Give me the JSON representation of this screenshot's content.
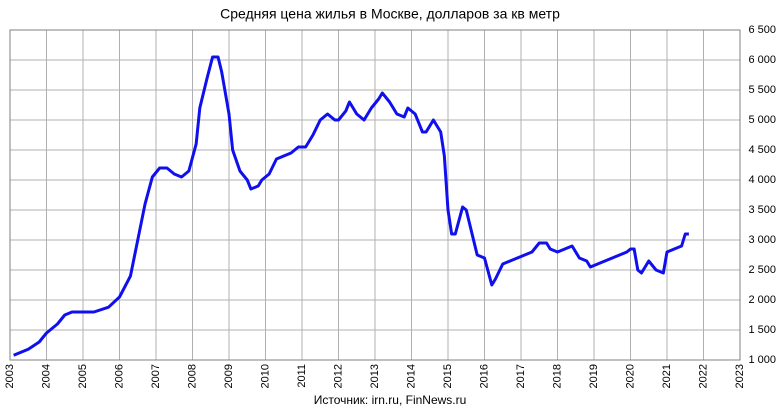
{
  "chart_data": {
    "type": "line",
    "title": "Средняя цена жилья в Москве, долларов за кв метр",
    "source": "Источник: irn.ru, FinNews.ru",
    "grid": true,
    "xlim": [
      2003,
      2023
    ],
    "xticks": [
      2003,
      2004,
      2005,
      2006,
      2007,
      2008,
      2009,
      2010,
      2011,
      2012,
      2013,
      2014,
      2015,
      2016,
      2017,
      2018,
      2019,
      2020,
      2021,
      2022,
      2023
    ],
    "ylim": [
      1000,
      6500
    ],
    "yticks": [
      {
        "value": 1000,
        "label": "1 000"
      },
      {
        "value": 1500,
        "label": "1 500"
      },
      {
        "value": 2000,
        "label": "2 000"
      },
      {
        "value": 2500,
        "label": "2 500"
      },
      {
        "value": 3000,
        "label": "3 000"
      },
      {
        "value": 3500,
        "label": "3 500"
      },
      {
        "value": 4000,
        "label": "4 000"
      },
      {
        "value": 4500,
        "label": "4 500"
      },
      {
        "value": 5000,
        "label": "5 000"
      },
      {
        "value": 5500,
        "label": "5 500"
      },
      {
        "value": 6000,
        "label": "6 000"
      },
      {
        "value": 6500,
        "label": "6 500"
      }
    ],
    "x": [
      2003.1,
      2003.5,
      2003.8,
      2004.0,
      2004.3,
      2004.5,
      2004.7,
      2005.0,
      2005.3,
      2005.7,
      2006.0,
      2006.3,
      2006.5,
      2006.7,
      2006.9,
      2007.1,
      2007.3,
      2007.5,
      2007.7,
      2007.9,
      2008.1,
      2008.2,
      2008.4,
      2008.55,
      2008.7,
      2008.8,
      2009.0,
      2009.1,
      2009.3,
      2009.5,
      2009.6,
      2009.8,
      2009.9,
      2010.1,
      2010.3,
      2010.5,
      2010.7,
      2010.9,
      2011.1,
      2011.3,
      2011.5,
      2011.7,
      2011.9,
      2012.0,
      2012.2,
      2012.3,
      2012.5,
      2012.7,
      2012.9,
      2013.1,
      2013.2,
      2013.4,
      2013.6,
      2013.8,
      2013.9,
      2014.1,
      2014.3,
      2014.4,
      2014.6,
      2014.8,
      2014.9,
      2015.0,
      2015.1,
      2015.2,
      2015.4,
      2015.5,
      2015.7,
      2015.8,
      2016.0,
      2016.2,
      2016.3,
      2016.5,
      2016.7,
      2016.9,
      2017.1,
      2017.3,
      2017.5,
      2017.7,
      2017.8,
      2018.0,
      2018.2,
      2018.4,
      2018.6,
      2018.8,
      2018.9,
      2019.1,
      2019.3,
      2019.5,
      2019.7,
      2019.9,
      2020.0,
      2020.1,
      2020.2,
      2020.3,
      2020.5,
      2020.7,
      2020.9,
      2021.0,
      2021.2,
      2021.4,
      2021.5,
      2021.6
    ],
    "series": [
      {
        "color": "#1010ee",
        "values": [
          1080,
          1180,
          1300,
          1450,
          1600,
          1750,
          1800,
          1800,
          1800,
          1880,
          2050,
          2400,
          3000,
          3600,
          4050,
          4200,
          4200,
          4100,
          4050,
          4150,
          4600,
          5200,
          5700,
          6050,
          6050,
          5800,
          5100,
          4500,
          4150,
          4000,
          3850,
          3900,
          4000,
          4100,
          4350,
          4400,
          4450,
          4550,
          4550,
          4750,
          5000,
          5100,
          5000,
          5000,
          5150,
          5300,
          5100,
          5000,
          5200,
          5350,
          5450,
          5300,
          5100,
          5050,
          5200,
          5100,
          4800,
          4800,
          5000,
          4800,
          4400,
          3500,
          3100,
          3100,
          3550,
          3500,
          3000,
          2750,
          2700,
          2250,
          2350,
          2600,
          2650,
          2700,
          2750,
          2800,
          2950,
          2950,
          2850,
          2800,
          2850,
          2900,
          2700,
          2650,
          2550,
          2600,
          2650,
          2700,
          2750,
          2800,
          2850,
          2850,
          2500,
          2450,
          2650,
          2500,
          2450,
          2800,
          2850,
          2900,
          3100,
          3100
        ]
      }
    ]
  }
}
